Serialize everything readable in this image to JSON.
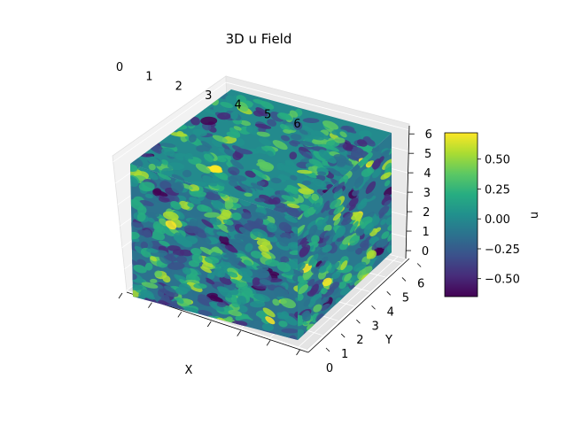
{
  "chart_data": {
    "type": "heatmap",
    "variant": "3d-volume-surface",
    "title": "3D u Field",
    "xlabel": "X",
    "ylabel": "Y",
    "zlabel": "",
    "x_ticks": [
      "0",
      "1",
      "2",
      "3",
      "4",
      "5",
      "6"
    ],
    "y_ticks": [
      "0",
      "1",
      "2",
      "3",
      "4",
      "5",
      "6"
    ],
    "z_ticks": [
      "0",
      "1",
      "2",
      "3",
      "4",
      "5",
      "6"
    ],
    "xlim": [
      0,
      6.283
    ],
    "ylim": [
      0,
      6.283
    ],
    "zlim": [
      0,
      6.283
    ],
    "colormap": "viridis",
    "color_range": [
      -0.65,
      0.72
    ],
    "colorbar": {
      "label": "u",
      "ticks": [
        "0.50",
        "0.25",
        "0.00",
        "−0.25",
        "−0.50"
      ],
      "tick_values": [
        0.5,
        0.25,
        0.0,
        -0.25,
        -0.5
      ],
      "placement": "right"
    },
    "grid": true
  },
  "colors": {
    "viridis": [
      "#440154",
      "#472c7a",
      "#3b518b",
      "#2c718e",
      "#21908d",
      "#27ad81",
      "#5cc863",
      "#aadc32",
      "#fde725"
    ]
  }
}
